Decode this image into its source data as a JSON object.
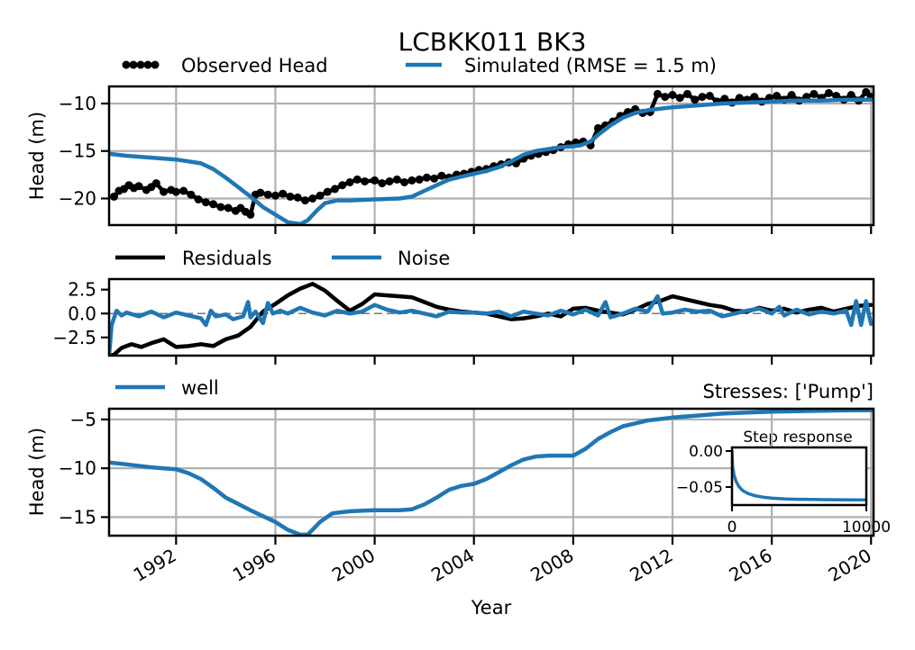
{
  "chart_data": [
    {
      "type": "line",
      "panel": "heads",
      "title": "LCBKK011 BK3",
      "xlabel": "",
      "ylabel": "Head (m)",
      "xlim": [
        1989.3,
        2020.1
      ],
      "ylim": [
        -22.8,
        -8.2
      ],
      "yticks": [
        -10,
        -15,
        -20
      ],
      "ytick_labels": [
        "−10",
        "−15",
        "−20"
      ],
      "grid": true,
      "legend_position": "top, above axes",
      "series": [
        {
          "name": "Observed Head",
          "color": "#000000",
          "marker": "circle",
          "x": [
            1989.5,
            1989.7,
            1989.9,
            1990.1,
            1990.3,
            1990.5,
            1990.8,
            1991.0,
            1991.2,
            1991.5,
            1991.8,
            1992.0,
            1992.3,
            1992.6,
            1992.9,
            1993.2,
            1993.5,
            1993.8,
            1994.1,
            1994.4,
            1994.6,
            1994.8,
            1995.0,
            1995.2,
            1995.4,
            1995.7,
            1996.0,
            1996.3,
            1996.6,
            1996.9,
            1997.2,
            1997.5,
            1997.8,
            1998.1,
            1998.4,
            1998.7,
            1999.0,
            1999.3,
            1999.6,
            2000.0,
            2000.3,
            2000.6,
            2000.9,
            2001.2,
            2001.5,
            2001.8,
            2002.1,
            2002.4,
            2002.7,
            2003.0,
            2003.3,
            2003.6,
            2003.9,
            2004.2,
            2004.5,
            2004.8,
            2005.1,
            2005.4,
            2005.7,
            2006.0,
            2006.3,
            2006.6,
            2006.9,
            2007.2,
            2007.5,
            2007.8,
            2008.1,
            2008.4,
            2008.7,
            2009.0,
            2009.3,
            2009.6,
            2009.9,
            2010.2,
            2010.5,
            2010.8,
            2011.1,
            2011.4,
            2011.7,
            2012.0,
            2012.3,
            2012.6,
            2012.9,
            2013.2,
            2013.5,
            2013.8,
            2014.1,
            2014.4,
            2014.7,
            2015.0,
            2015.3,
            2015.6,
            2015.9,
            2016.2,
            2016.5,
            2016.8,
            2017.1,
            2017.4,
            2017.7,
            2018.0,
            2018.3,
            2018.6,
            2018.9,
            2019.2,
            2019.5,
            2019.8,
            2020.0
          ],
          "y": [
            -19.8,
            -19.2,
            -19.0,
            -18.6,
            -18.9,
            -18.7,
            -19.1,
            -18.8,
            -18.4,
            -19.3,
            -19.1,
            -19.3,
            -19.2,
            -19.6,
            -20.1,
            -20.4,
            -20.6,
            -20.9,
            -21.0,
            -21.3,
            -21.0,
            -21.4,
            -21.7,
            -19.6,
            -19.4,
            -19.6,
            -19.7,
            -19.5,
            -19.8,
            -19.9,
            -20.2,
            -20.0,
            -19.7,
            -19.3,
            -19.0,
            -18.6,
            -18.3,
            -18.0,
            -18.2,
            -18.1,
            -18.4,
            -18.2,
            -18.0,
            -18.3,
            -18.1,
            -18.0,
            -17.8,
            -17.9,
            -17.6,
            -17.8,
            -17.5,
            -17.4,
            -17.2,
            -17.0,
            -16.9,
            -16.6,
            -16.4,
            -16.2,
            -16.3,
            -15.8,
            -15.5,
            -15.3,
            -15.1,
            -14.9,
            -14.6,
            -14.3,
            -14.1,
            -14.0,
            -14.4,
            -12.6,
            -12.3,
            -11.9,
            -11.3,
            -10.9,
            -10.6,
            -11.0,
            -10.9,
            -9.0,
            -9.3,
            -9.1,
            -9.4,
            -9.0,
            -9.6,
            -9.3,
            -9.2,
            -9.8,
            -9.5,
            -9.9,
            -9.4,
            -9.6,
            -9.3,
            -9.8,
            -9.4,
            -9.2,
            -9.6,
            -9.1,
            -9.7,
            -9.3,
            -9.0,
            -9.4,
            -8.9,
            -9.2,
            -9.6,
            -9.1,
            -9.7,
            -8.8,
            -9.3
          ]
        },
        {
          "name": "Simulated (RMSE = 1.5 m)",
          "color": "#1f77b4",
          "x": [
            1989.3,
            1990,
            1991,
            1992,
            1993,
            1993.5,
            1994,
            1994.5,
            1995,
            1995.5,
            1996,
            1996.5,
            1997,
            1997.3,
            1997.7,
            1998,
            1998.5,
            1999,
            2000,
            2001,
            2001.5,
            2002,
            2002.5,
            2003,
            2003.5,
            2004,
            2004.5,
            2005,
            2005.5,
            2006,
            2006.5,
            2007,
            2007.5,
            2008,
            2008.3,
            2008.7,
            2009,
            2009.5,
            2010,
            2010.5,
            2011,
            2012,
            2013,
            2014,
            2015,
            2016,
            2017,
            2018,
            2019,
            2020.1
          ],
          "y": [
            -15.3,
            -15.5,
            -15.7,
            -15.9,
            -16.3,
            -16.9,
            -17.8,
            -18.8,
            -19.8,
            -20.9,
            -21.7,
            -22.5,
            -22.7,
            -22.3,
            -21.2,
            -20.5,
            -20.2,
            -20.2,
            -20.1,
            -20.0,
            -19.8,
            -19.2,
            -18.6,
            -18.0,
            -17.7,
            -17.4,
            -17.1,
            -16.7,
            -16.1,
            -15.4,
            -15.0,
            -14.8,
            -14.6,
            -14.5,
            -14.4,
            -14.0,
            -13.3,
            -12.3,
            -11.5,
            -11.0,
            -10.7,
            -10.4,
            -10.2,
            -10.0,
            -9.9,
            -9.8,
            -9.7,
            -9.7,
            -9.6,
            -9.6
          ]
        }
      ]
    },
    {
      "type": "line",
      "panel": "residuals",
      "xlabel": "",
      "ylabel": "",
      "xlim": [
        1989.3,
        2020.1
      ],
      "ylim": [
        -4.4,
        3.6
      ],
      "yticks": [
        2.5,
        0.0,
        -2.5
      ],
      "ytick_labels": [
        "2.5",
        "0.0",
        "−2.5"
      ],
      "grid": false,
      "zero_line": "dashed grey",
      "legend_position": "top, above axes",
      "series": [
        {
          "name": "Residuals",
          "color": "#000000",
          "x": [
            1989.3,
            1989.5,
            1989.8,
            1990.2,
            1990.6,
            1991.0,
            1991.5,
            1992.0,
            1992.5,
            1993.0,
            1993.5,
            1994.0,
            1994.5,
            1995.0,
            1995.5,
            1996.0,
            1996.5,
            1997.0,
            1997.5,
            1998.0,
            1998.5,
            1999.0,
            1999.5,
            2000.0,
            2000.5,
            2001.0,
            2001.5,
            2002.0,
            2002.5,
            2003.0,
            2003.5,
            2004.0,
            2004.5,
            2005.0,
            2005.5,
            2006.0,
            2006.5,
            2007.0,
            2007.5,
            2008.0,
            2008.5,
            2009.0,
            2009.5,
            2010.0,
            2010.5,
            2011.0,
            2011.5,
            2012.0,
            2012.5,
            2013.0,
            2013.5,
            2014.0,
            2014.5,
            2015.0,
            2015.5,
            2016.0,
            2016.5,
            2017.0,
            2017.5,
            2018.0,
            2018.5,
            2019.0,
            2019.5,
            2020.0
          ],
          "y": [
            -4.4,
            -4.3,
            -3.6,
            -3.2,
            -3.5,
            -3.1,
            -2.7,
            -3.5,
            -3.4,
            -3.2,
            -3.4,
            -2.7,
            -2.3,
            -1.4,
            0.2,
            1.0,
            1.9,
            2.6,
            3.1,
            2.4,
            1.3,
            0.3,
            1.0,
            2.0,
            1.9,
            1.8,
            1.7,
            1.2,
            0.7,
            0.4,
            0.2,
            0.1,
            0.0,
            -0.3,
            -0.6,
            -0.5,
            -0.3,
            0.0,
            -0.3,
            0.5,
            0.6,
            0.3,
            0.1,
            -0.1,
            0.4,
            1.0,
            1.3,
            1.8,
            1.5,
            1.2,
            0.9,
            0.7,
            0.3,
            0.2,
            0.6,
            0.3,
            0.5,
            0.1,
            0.4,
            0.6,
            0.2,
            0.5,
            0.8,
            0.9
          ]
        },
        {
          "name": "Noise",
          "color": "#1f77b4",
          "x": [
            1989.3,
            1989.4,
            1989.6,
            1989.8,
            1990.0,
            1990.5,
            1991.0,
            1991.5,
            1992.0,
            1992.5,
            1993.0,
            1993.2,
            1993.4,
            1993.6,
            1994.0,
            1994.3,
            1994.7,
            1994.9,
            1995.0,
            1995.2,
            1995.5,
            1995.7,
            1995.9,
            1996.2,
            1996.5,
            1997.0,
            1997.5,
            1998.0,
            1998.5,
            1999.0,
            1999.5,
            2000.0,
            2000.5,
            2001.0,
            2001.5,
            2002.0,
            2002.5,
            2003.0,
            2003.5,
            2004.0,
            2004.5,
            2005.0,
            2005.5,
            2006.0,
            2006.5,
            2007.0,
            2007.5,
            2008.0,
            2008.5,
            2009.0,
            2009.3,
            2009.5,
            2010.0,
            2010.5,
            2011.0,
            2011.4,
            2011.6,
            2012.0,
            2012.5,
            2013.0,
            2013.5,
            2014.0,
            2014.5,
            2015.0,
            2015.5,
            2016.0,
            2016.3,
            2016.5,
            2017.0,
            2017.5,
            2018.0,
            2018.5,
            2019.0,
            2019.2,
            2019.4,
            2019.6,
            2019.8,
            2020.0
          ],
          "y": [
            -4.4,
            -1.2,
            0.3,
            -0.2,
            0.1,
            -0.3,
            0.2,
            -0.4,
            0.1,
            -0.2,
            -0.5,
            -1.2,
            0.3,
            -0.3,
            -0.1,
            -0.6,
            -0.3,
            1.2,
            -0.4,
            0.2,
            -1.0,
            1.1,
            0.0,
            0.3,
            0.0,
            0.6,
            0.1,
            -0.2,
            0.3,
            0.0,
            0.2,
            0.9,
            0.4,
            0.1,
            0.3,
            0.0,
            -0.3,
            0.2,
            0.1,
            0.1,
            0.0,
            0.2,
            -0.3,
            0.2,
            0.0,
            -0.2,
            0.3,
            -0.1,
            0.4,
            -0.2,
            1.2,
            -0.4,
            0.0,
            0.5,
            0.2,
            1.8,
            0.0,
            0.1,
            0.4,
            0.2,
            0.3,
            -0.3,
            0.0,
            0.3,
            0.5,
            0.0,
            0.7,
            -0.2,
            0.4,
            -0.1,
            0.2,
            0.0,
            0.3,
            -1.2,
            1.3,
            -1.2,
            1.3,
            -1.1
          ]
        }
      ]
    },
    {
      "type": "line",
      "panel": "contribution",
      "xlabel": "Year",
      "ylabel": "Head (m)",
      "title_right": "Stresses: ['Pump']",
      "xlim": [
        1989.3,
        2020.1
      ],
      "ylim": [
        -16.9,
        -3.9
      ],
      "yticks": [
        -5,
        -10,
        -15
      ],
      "ytick_labels": [
        "−5",
        "−10",
        "−15"
      ],
      "xticks": [
        1992,
        1996,
        2000,
        2004,
        2008,
        2012,
        2016,
        2020
      ],
      "xtick_labels": [
        "1992",
        "1996",
        "2000",
        "2004",
        "2008",
        "2012",
        "2016",
        "2020"
      ],
      "grid": true,
      "legend_position": "top-left, above axes",
      "series": [
        {
          "name": "well",
          "color": "#1f77b4",
          "x": [
            1989.3,
            1990,
            1991,
            1992,
            1992.5,
            1993,
            1993.5,
            1994,
            1995,
            1996,
            1996.5,
            1997,
            1997.3,
            1997.8,
            1998.3,
            1999,
            2000,
            2001,
            2001.5,
            2002,
            2002.5,
            2003,
            2003.5,
            2004,
            2004.5,
            2005,
            2005.5,
            2006,
            2006.5,
            2007,
            2008,
            2008.5,
            2009,
            2009.5,
            2010,
            2010.5,
            2011,
            2012,
            2013,
            2014,
            2015,
            2016,
            2017,
            2018,
            2019,
            2020.1
          ],
          "y": [
            -9.4,
            -9.6,
            -9.9,
            -10.1,
            -10.5,
            -11.1,
            -12.0,
            -13.0,
            -14.3,
            -15.5,
            -16.3,
            -16.8,
            -16.8,
            -15.5,
            -14.6,
            -14.4,
            -14.3,
            -14.3,
            -14.2,
            -13.7,
            -13.0,
            -12.2,
            -11.8,
            -11.6,
            -11.1,
            -10.4,
            -9.7,
            -9.1,
            -8.8,
            -8.7,
            -8.7,
            -8.0,
            -7.0,
            -6.3,
            -5.7,
            -5.4,
            -5.1,
            -4.8,
            -4.6,
            -4.4,
            -4.3,
            -4.2,
            -4.15,
            -4.1,
            -4.07,
            -4.05
          ]
        }
      ]
    },
    {
      "type": "line",
      "panel": "inset",
      "title": "Step response",
      "xlim": [
        0,
        10000
      ],
      "ylim": [
        -0.075,
        0.005
      ],
      "yticks": [
        0.0,
        -0.05
      ],
      "ytick_labels": [
        "0.00",
        "−0.05"
      ],
      "xticks": [
        0,
        10000
      ],
      "xtick_labels": [
        "0",
        "10000"
      ],
      "series": [
        {
          "color": "#1f77b4",
          "x": [
            0,
            50,
            150,
            300,
            500,
            800,
            1200,
            1700,
            2300,
            3000,
            4000,
            5000,
            6000,
            7000,
            8000,
            9000,
            10000,
            10600
          ],
          "y": [
            0,
            -0.021,
            -0.033,
            -0.042,
            -0.049,
            -0.055,
            -0.059,
            -0.062,
            -0.064,
            -0.0655,
            -0.0665,
            -0.067,
            -0.0673,
            -0.0675,
            -0.0676,
            -0.0677,
            -0.0678,
            -0.0678
          ]
        }
      ]
    }
  ]
}
